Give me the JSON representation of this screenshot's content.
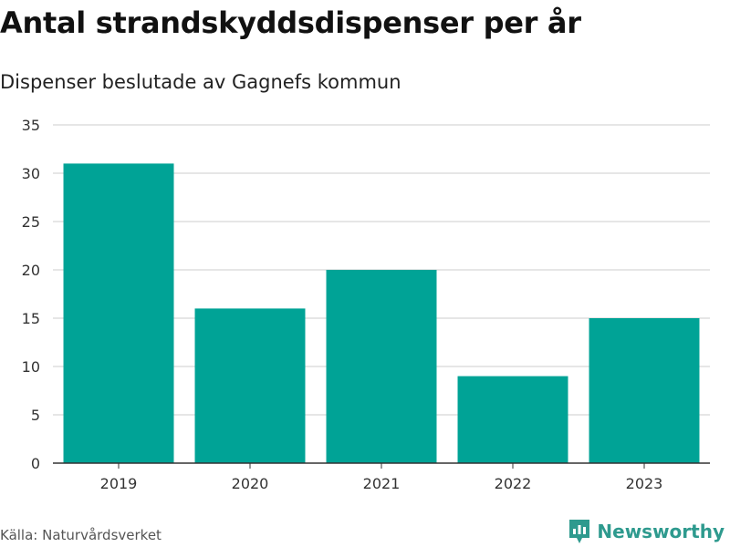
{
  "page": {
    "title": "Antal strandskyddsdispenser per år",
    "subtitle": "Dispenser beslutade av Gagnefs kommun",
    "source": "Källa: Naturvårdsverket",
    "brand": "Newsworthy",
    "brand_icon": "newsworthy-logo-icon"
  },
  "colors": {
    "bar": "#00a396",
    "grid": "#dddddd",
    "axis": "#333333",
    "brand": "#2e9a8e"
  },
  "chart_data": {
    "type": "bar",
    "title": "Antal strandskyddsdispenser per år",
    "subtitle": "Dispenser beslutade av Gagnefs kommun",
    "xlabel": "",
    "ylabel": "",
    "categories": [
      "2019",
      "2020",
      "2021",
      "2022",
      "2023"
    ],
    "values": [
      31,
      16,
      20,
      9,
      15
    ],
    "ylim": [
      0,
      35
    ],
    "yticks": [
      0,
      5,
      10,
      15,
      20,
      25,
      30,
      35
    ],
    "grid": true,
    "legend": "none"
  }
}
